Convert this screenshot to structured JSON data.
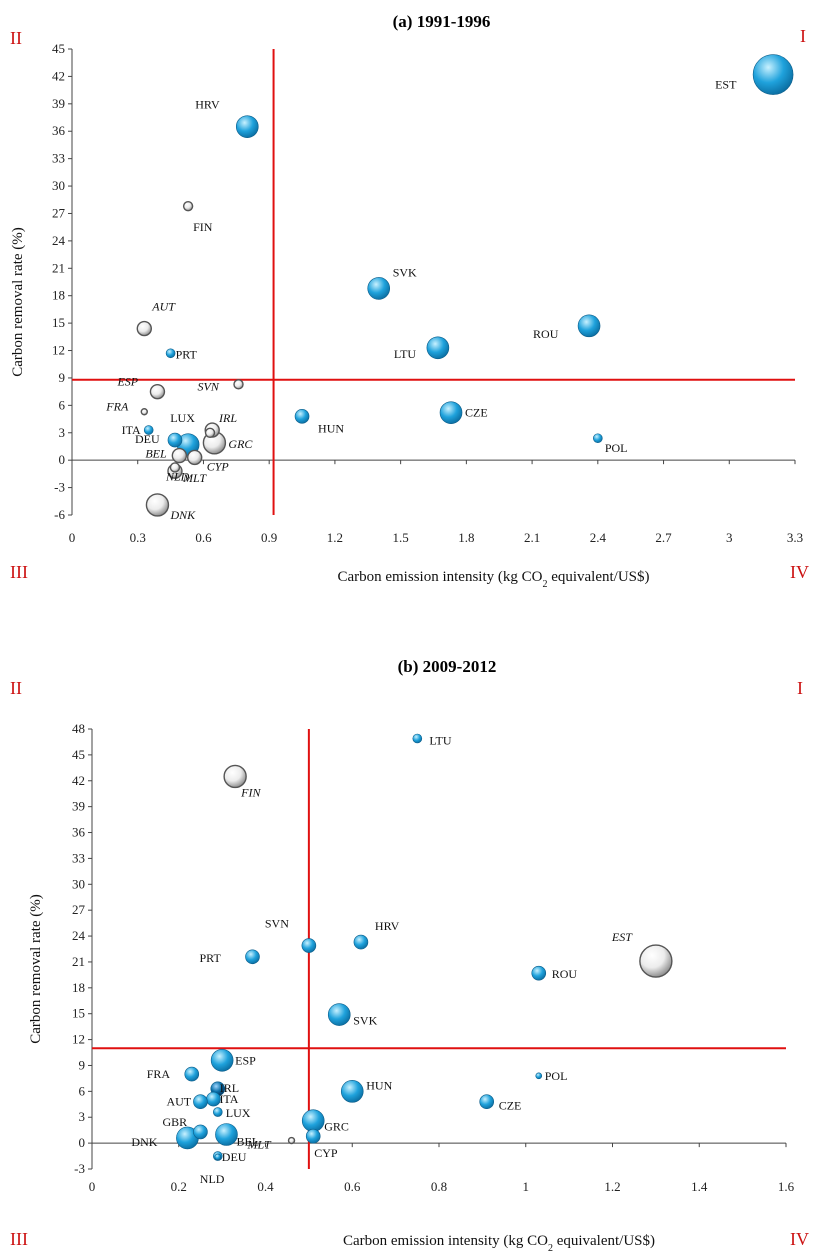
{
  "colors": {
    "filled": "#1fa2dc",
    "filled_dark": "#0a6fa8",
    "hollow": "#d0d0d0",
    "threshold": "#e01010",
    "axis": "#444444"
  },
  "chart_data": [
    {
      "type": "scatter",
      "title": "(a) 1991-1996",
      "xlabel_parts": [
        "Carbon emission  intensity (kg CO",
        "2",
        " equivalent/US$)"
      ],
      "ylabel": "Carbon removal rate (%)",
      "xlim": [
        0,
        3.3
      ],
      "ylim": [
        -6,
        45
      ],
      "xticks": [
        "0",
        "0.3",
        "0.6",
        "0.9",
        "1.2",
        "1.5",
        "1.8",
        "2.1",
        "2.4",
        "2.7",
        "3",
        "3.3"
      ],
      "yticks": [
        "-6",
        "-3",
        "0",
        "3",
        "6",
        "9",
        "12",
        "15",
        "18",
        "21",
        "24",
        "27",
        "30",
        "33",
        "36",
        "39",
        "42",
        "45"
      ],
      "quadrants": {
        "I": "I",
        "II": "II",
        "III": "III",
        "IV": "IV"
      },
      "thresholds": {
        "x": 0.92,
        "y": 8.8
      },
      "points": [
        {
          "label": "EST",
          "x": 3.2,
          "y": 42.2,
          "size": "xl",
          "style": "filled",
          "italic": false
        },
        {
          "label": "HRV",
          "x": 0.8,
          "y": 36.5,
          "size": "m",
          "style": "filled",
          "italic": false
        },
        {
          "label": "FIN",
          "x": 0.53,
          "y": 27.8,
          "size": "xs",
          "style": "hollow",
          "italic": false
        },
        {
          "label": "SVK",
          "x": 1.4,
          "y": 18.8,
          "size": "m",
          "style": "filled",
          "italic": false
        },
        {
          "label": "ROU",
          "x": 2.36,
          "y": 14.7,
          "size": "m",
          "style": "filled",
          "italic": false
        },
        {
          "label": "AUT",
          "x": 0.33,
          "y": 14.4,
          "size": "s",
          "style": "hollow",
          "italic": true
        },
        {
          "label": "LTU",
          "x": 1.67,
          "y": 12.3,
          "size": "m",
          "style": "filled",
          "italic": false
        },
        {
          "label": "PRT",
          "x": 0.45,
          "y": 11.7,
          "size": "xs",
          "style": "filled",
          "italic": false
        },
        {
          "label": "SVN",
          "x": 0.76,
          "y": 8.3,
          "size": "xs",
          "style": "hollow",
          "italic": true
        },
        {
          "label": "ESP",
          "x": 0.39,
          "y": 7.5,
          "size": "s",
          "style": "hollow",
          "italic": true
        },
        {
          "label": "FRA",
          "x": 0.33,
          "y": 5.3,
          "size": "xxs",
          "style": "hollow",
          "italic": true
        },
        {
          "label": "CZE",
          "x": 1.73,
          "y": 5.2,
          "size": "m",
          "style": "filled",
          "italic": false
        },
        {
          "label": "HUN",
          "x": 1.05,
          "y": 4.8,
          "size": "s",
          "style": "filled",
          "italic": false
        },
        {
          "label": "LUX",
          "x": 0.64,
          "y": 3.3,
          "size": "s",
          "style": "hollow",
          "italic": false
        },
        {
          "label": "ITA",
          "x": 0.35,
          "y": 3.3,
          "size": "xs",
          "style": "filled",
          "italic": false
        },
        {
          "label": "IRL",
          "x": 0.63,
          "y": 3.0,
          "size": "xs",
          "style": "hollow",
          "italic": true
        },
        {
          "label": "POL",
          "x": 2.4,
          "y": 2.4,
          "size": "xs",
          "style": "filled",
          "italic": false
        },
        {
          "label": "DEU",
          "x": 0.47,
          "y": 2.2,
          "size": "s",
          "style": "filled",
          "italic": false
        },
        {
          "label": "GRC",
          "x": 0.65,
          "y": 1.9,
          "size": "m",
          "style": "hollow",
          "italic": true
        },
        {
          "label": "",
          "x": 0.53,
          "y": 1.7,
          "size": "m",
          "style": "filled",
          "italic": false
        },
        {
          "label": "BEL",
          "x": 0.49,
          "y": 0.5,
          "size": "s",
          "style": "hollow",
          "italic": true
        },
        {
          "label": "CYP",
          "x": 0.56,
          "y": 0.3,
          "size": "s",
          "style": "hollow",
          "italic": true
        },
        {
          "label": "MLT",
          "x": 0.47,
          "y": -1.2,
          "size": "s",
          "style": "hollow",
          "italic": true
        },
        {
          "label": "NLD",
          "x": 0.47,
          "y": -0.8,
          "size": "xs",
          "style": "hollow",
          "italic": true
        },
        {
          "label": "DNK",
          "x": 0.39,
          "y": -4.9,
          "size": "m",
          "style": "hollow",
          "italic": true
        }
      ]
    },
    {
      "type": "scatter",
      "title": "(b) 2009-2012",
      "xlabel_parts": [
        "Carbon emission  intensity (kg CO",
        "2",
        " equivalent/US$)"
      ],
      "ylabel": "Carbon removal rate (%)",
      "xlim": [
        0,
        1.6
      ],
      "ylim": [
        -3,
        48
      ],
      "xticks": [
        "0",
        "0.2",
        "0.4",
        "0.6",
        "0.8",
        "1",
        "1.2",
        "1.4",
        "1.6"
      ],
      "yticks": [
        "-3",
        "0",
        "3",
        "6",
        "9",
        "12",
        "15",
        "18",
        "21",
        "24",
        "27",
        "30",
        "33",
        "36",
        "39",
        "42",
        "45",
        "48"
      ],
      "quadrants": {
        "I": "I",
        "II": "II",
        "III": "III",
        "IV": "IV"
      },
      "thresholds": {
        "x": 0.5,
        "y": 11
      },
      "points": [
        {
          "label": "LTU",
          "x": 0.75,
          "y": 46.9,
          "size": "xs",
          "style": "filled",
          "italic": false
        },
        {
          "label": "FIN",
          "x": 0.33,
          "y": 42.5,
          "size": "m",
          "style": "hollow",
          "italic": true
        },
        {
          "label": "SVN",
          "x": 0.5,
          "y": 22.9,
          "size": "s",
          "style": "filled",
          "italic": false
        },
        {
          "label": "HRV",
          "x": 0.62,
          "y": 23.3,
          "size": "s",
          "style": "filled",
          "italic": false
        },
        {
          "label": "PRT",
          "x": 0.37,
          "y": 21.6,
          "size": "s",
          "style": "filled",
          "italic": false
        },
        {
          "label": "EST",
          "x": 1.3,
          "y": 21.1,
          "size": "l",
          "style": "hollow",
          "italic": true
        },
        {
          "label": "ROU",
          "x": 1.03,
          "y": 19.7,
          "size": "s",
          "style": "filled",
          "italic": false
        },
        {
          "label": "SVK",
          "x": 0.57,
          "y": 14.9,
          "size": "m",
          "style": "filled",
          "italic": false
        },
        {
          "label": "ESP",
          "x": 0.3,
          "y": 9.6,
          "size": "m",
          "style": "filled",
          "italic": false
        },
        {
          "label": "FRA",
          "x": 0.23,
          "y": 8.0,
          "size": "s",
          "style": "filled",
          "italic": false
        },
        {
          "label": "POL",
          "x": 1.03,
          "y": 7.8,
          "size": "xxs",
          "style": "filled",
          "italic": false
        },
        {
          "label": "IRL",
          "x": 0.29,
          "y": 6.3,
          "size": "s",
          "style": "dark",
          "italic": false
        },
        {
          "label": "HUN",
          "x": 0.6,
          "y": 6.0,
          "size": "m",
          "style": "filled",
          "italic": false
        },
        {
          "label": "ITA",
          "x": 0.28,
          "y": 5.1,
          "size": "s",
          "style": "filled",
          "italic": false
        },
        {
          "label": "AUT",
          "x": 0.25,
          "y": 4.8,
          "size": "s",
          "style": "filled",
          "italic": false
        },
        {
          "label": "CZE",
          "x": 0.91,
          "y": 4.8,
          "size": "s",
          "style": "filled",
          "italic": false
        },
        {
          "label": "LUX",
          "x": 0.29,
          "y": 3.6,
          "size": "xs",
          "style": "filled",
          "italic": false
        },
        {
          "label": "GRC",
          "x": 0.51,
          "y": 2.6,
          "size": "m",
          "style": "filled",
          "italic": false
        },
        {
          "label": "GBR",
          "x": 0.25,
          "y": 1.3,
          "size": "s",
          "style": "filled",
          "italic": false
        },
        {
          "label": "BEL",
          "x": 0.31,
          "y": 1.0,
          "size": "m",
          "style": "filled",
          "italic": false
        },
        {
          "label": "CYP",
          "x": 0.51,
          "y": 0.8,
          "size": "s",
          "style": "filled",
          "italic": false
        },
        {
          "label": "DNK",
          "x": 0.22,
          "y": 0.6,
          "size": "m",
          "style": "filled",
          "italic": false
        },
        {
          "label": "MLT",
          "x": 0.46,
          "y": 0.3,
          "size": "xxs",
          "style": "hollow",
          "italic": true
        },
        {
          "label": "DEU",
          "x": 0.29,
          "y": -1.5,
          "size": "xs",
          "style": "filled",
          "italic": false
        },
        {
          "label": "NLD",
          "x": 0.29,
          "y": -1.6,
          "size": "xxs",
          "style": "filled",
          "italic": false
        }
      ]
    }
  ]
}
